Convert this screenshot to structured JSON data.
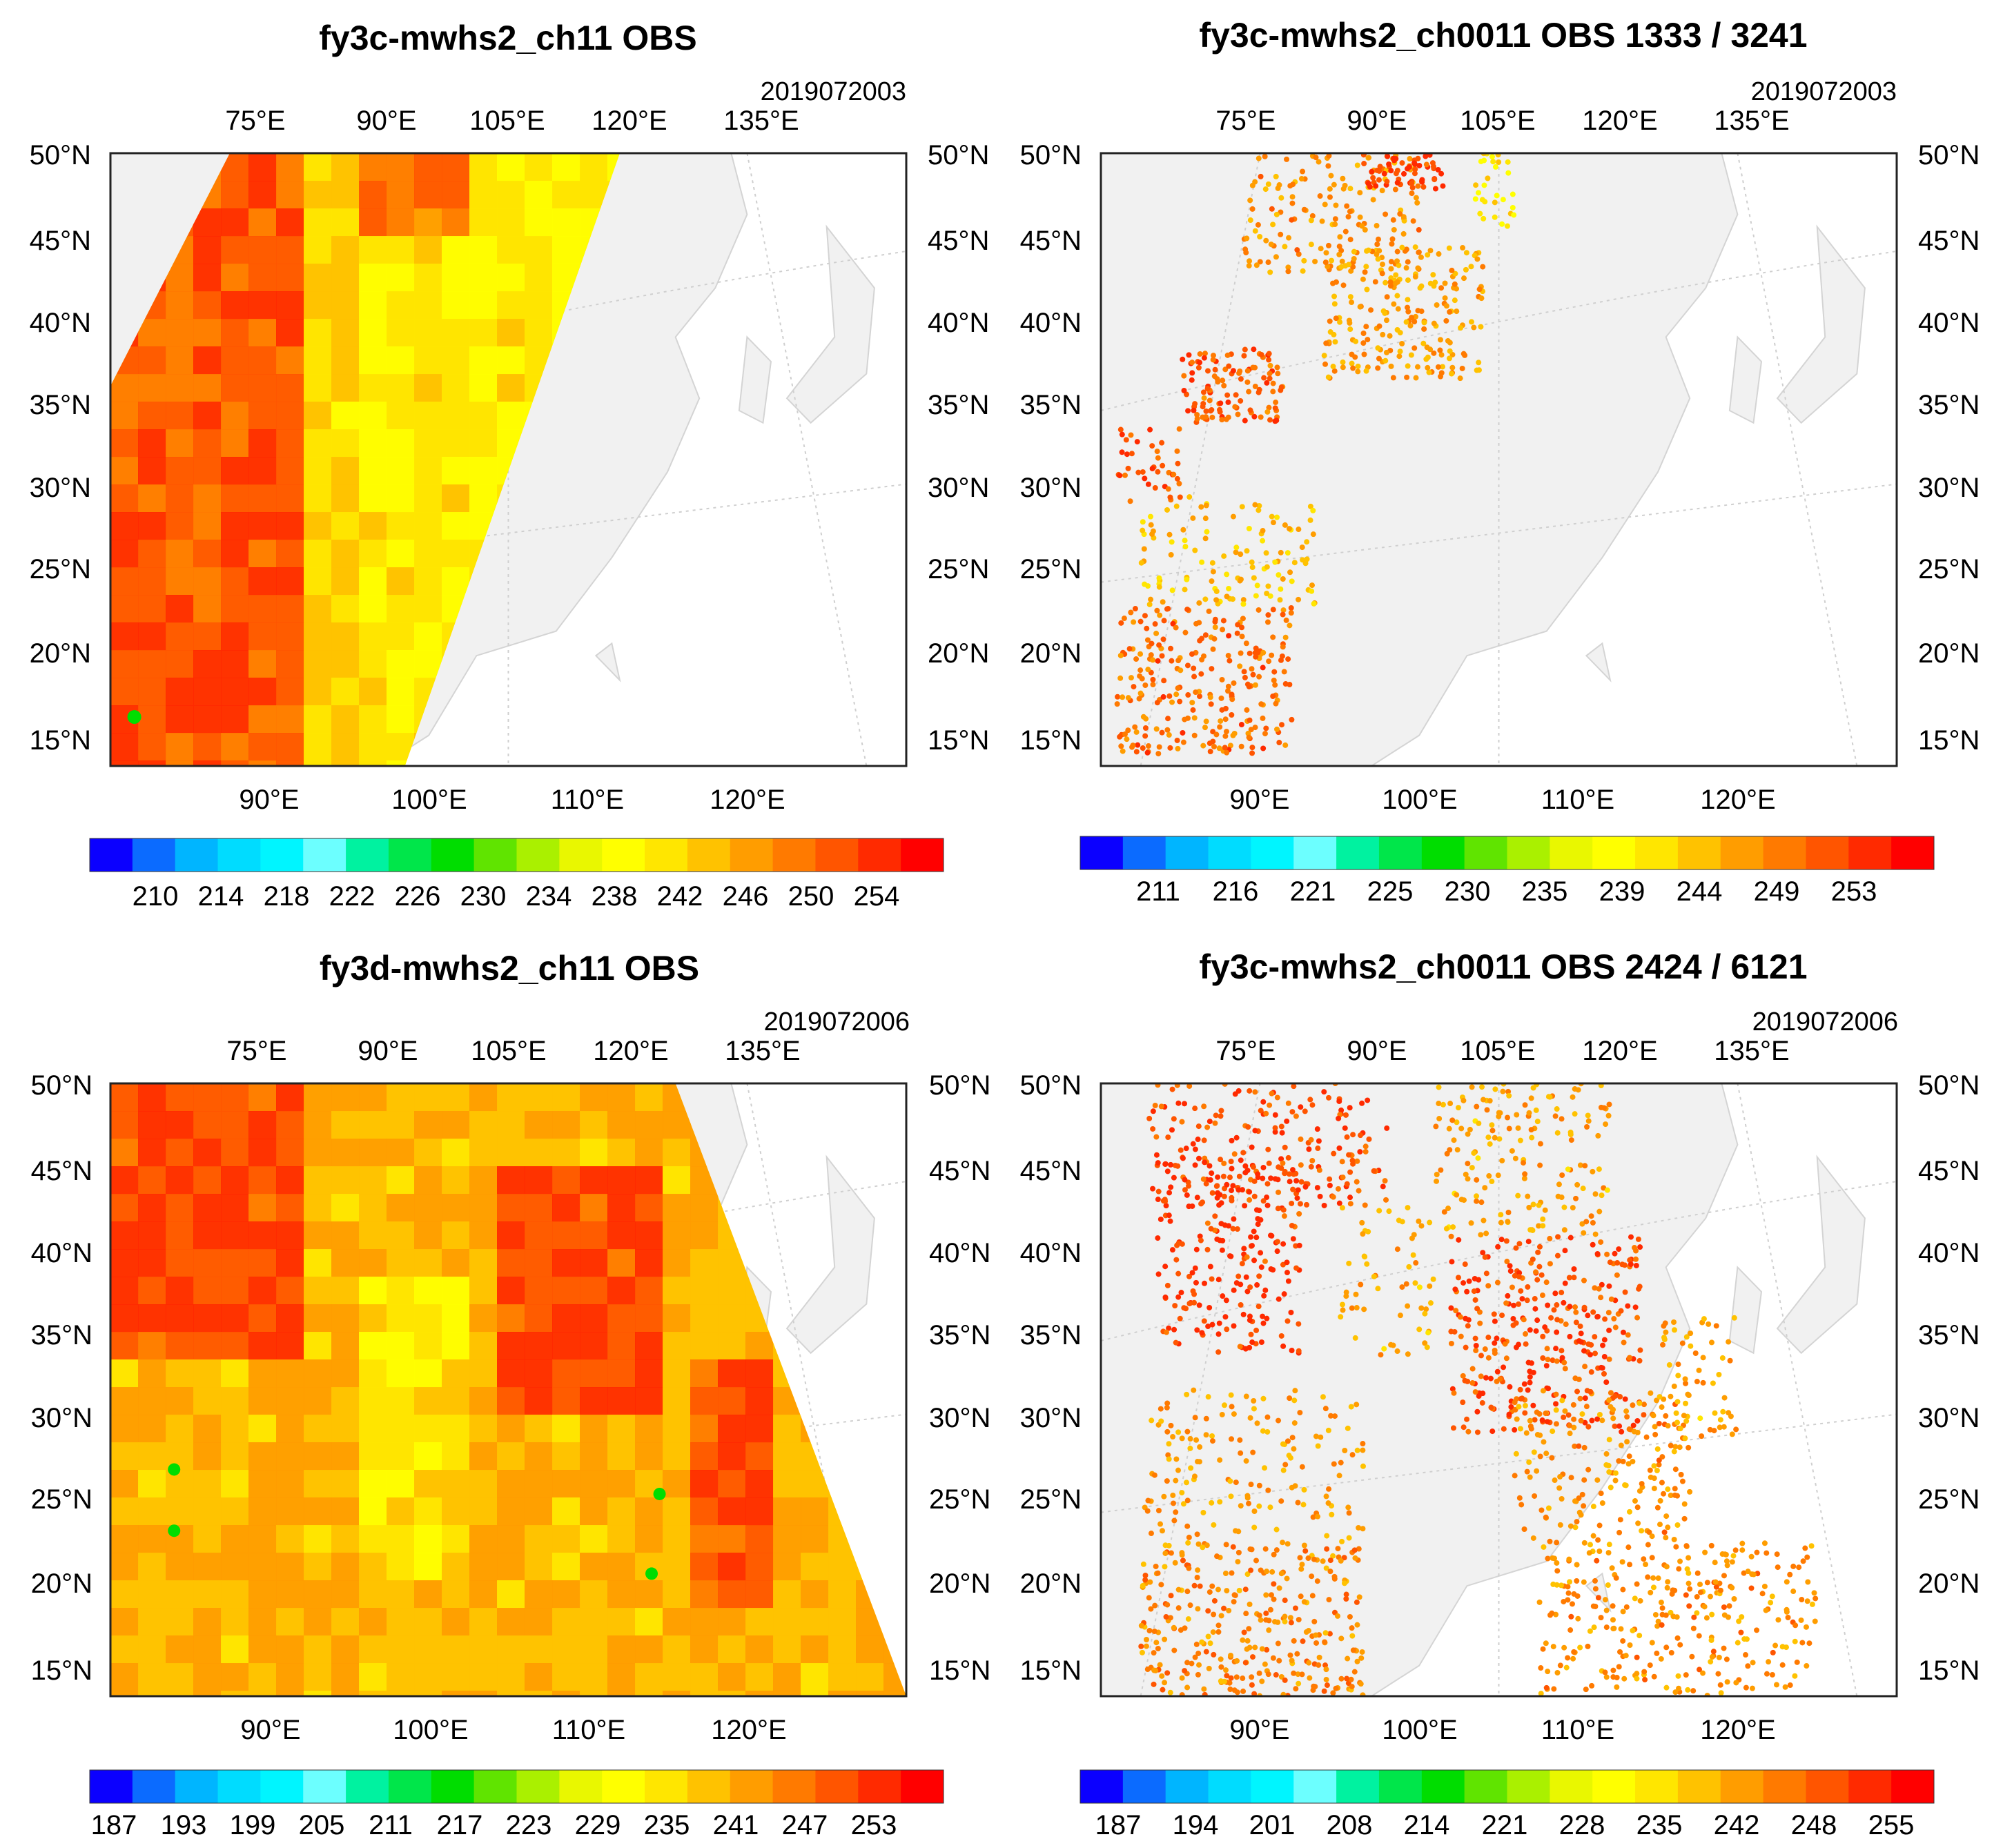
{
  "colors": {
    "land": "#f1f1f1",
    "border": "#d4d4d4",
    "grid": "#cfcfcf",
    "frame": "#222222",
    "background": "#ffffff"
  },
  "colorbar_palette": [
    "#0b00ff",
    "#0b6bff",
    "#00b5ff",
    "#00dcff",
    "#00f5ff",
    "#6cffff",
    "#00f2a0",
    "#00e64a",
    "#00dd00",
    "#60e400",
    "#aaf000",
    "#e9f700",
    "#ffff00",
    "#ffe600",
    "#ffc200",
    "#ff9d00",
    "#ff7a00",
    "#ff5500",
    "#ff2a00",
    "#ff0000"
  ],
  "panels": [
    {
      "title": "fy3c-mwhs2_ch11  OBS",
      "timestamp": "2019072003",
      "top_lon_labels": [
        "75°E",
        "90°E",
        "105°E",
        "120°E",
        "135°E"
      ],
      "bottom_lon_labels": [
        "90°E",
        "100°E",
        "110°E",
        "120°E"
      ],
      "left_lat_labels": [
        "50°N",
        "45°N",
        "40°N",
        "35°N",
        "30°N",
        "25°N",
        "20°N",
        "15°N"
      ],
      "right_lat_labels": [
        "50°N",
        "45°N",
        "40°N",
        "35°N",
        "30°N",
        "25°N",
        "20°N",
        "15°N"
      ],
      "colorbar_labels": [
        "210",
        "214",
        "218",
        "222",
        "226",
        "230",
        "234",
        "238",
        "242",
        "246",
        "250",
        "254"
      ],
      "map_style": "swath-field",
      "swath": "fy3c left swath, ends ~120°E at 50°N"
    },
    {
      "title": "fy3c-mwhs2_ch0011  OBS  1333 / 3241",
      "timestamp": "2019072003",
      "top_lon_labels": [
        "75°E",
        "90°E",
        "105°E",
        "120°E",
        "135°E"
      ],
      "bottom_lon_labels": [
        "90°E",
        "100°E",
        "110°E",
        "120°E"
      ],
      "left_lat_labels": [
        "50°N",
        "45°N",
        "40°N",
        "35°N",
        "30°N",
        "25°N",
        "20°N",
        "15°N"
      ],
      "right_lat_labels": [
        "50°N",
        "45°N",
        "40°N",
        "35°N",
        "30°N",
        "25°N",
        "20°N",
        "15°N"
      ],
      "colorbar_labels": [
        "211",
        "216",
        "221",
        "225",
        "230",
        "235",
        "239",
        "244",
        "249",
        "253"
      ],
      "map_style": "thinned-points",
      "obs_used": 1333,
      "obs_total": 3241
    },
    {
      "title": "fy3d-mwhs2_ch11  OBS",
      "timestamp": "2019072006",
      "top_lon_labels": [
        "75°E",
        "90°E",
        "105°E",
        "120°E",
        "135°E"
      ],
      "bottom_lon_labels": [
        "90°E",
        "100°E",
        "110°E",
        "120°E"
      ],
      "left_lat_labels": [
        "50°N",
        "45°N",
        "40°N",
        "35°N",
        "30°N",
        "25°N",
        "20°N",
        "15°N"
      ],
      "right_lat_labels": [
        "50°N",
        "45°N",
        "40°N",
        "35°N",
        "30°N",
        "25°N",
        "20°N",
        "15°N"
      ],
      "colorbar_labels": [
        "187",
        "193",
        "199",
        "205",
        "211",
        "217",
        "223",
        "229",
        "235",
        "241",
        "247",
        "253"
      ],
      "map_style": "swath-field",
      "swath": "fy3d wide swath covering most of domain"
    },
    {
      "title": "fy3c-mwhs2_ch0011  OBS  2424 / 6121",
      "timestamp": "2019072006",
      "top_lon_labels": [
        "75°E",
        "90°E",
        "105°E",
        "120°E",
        "135°E"
      ],
      "bottom_lon_labels": [
        "90°E",
        "100°E",
        "110°E",
        "120°E"
      ],
      "left_lat_labels": [
        "50°N",
        "45°N",
        "40°N",
        "35°N",
        "30°N",
        "25°N",
        "20°N",
        "15°N"
      ],
      "right_lat_labels": [
        "50°N",
        "45°N",
        "40°N",
        "35°N",
        "30°N",
        "25°N",
        "20°N",
        "15°N"
      ],
      "colorbar_labels": [
        "187",
        "194",
        "201",
        "208",
        "214",
        "221",
        "228",
        "235",
        "242",
        "248",
        "255"
      ],
      "map_style": "thinned-points",
      "obs_used": 2424,
      "obs_total": 6121
    }
  ]
}
